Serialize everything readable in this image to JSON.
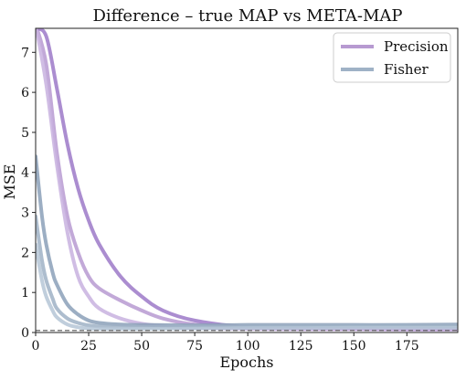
{
  "chart_data": {
    "type": "line",
    "title": "Difference – true MAP vs META-MAP",
    "xlabel": "Epochs",
    "ylabel": "MSE",
    "xlim": [
      0,
      199
    ],
    "ylim": [
      0,
      7.6
    ],
    "xticks": [
      0,
      25,
      50,
      75,
      100,
      125,
      150,
      175
    ],
    "yticks": [
      0,
      1,
      2,
      3,
      4,
      5,
      6,
      7
    ],
    "xtick_labels": [
      "0",
      "25",
      "50",
      "75",
      "100",
      "125",
      "150",
      "175"
    ],
    "ytick_labels": [
      "0",
      "1",
      "2",
      "3",
      "4",
      "5",
      "6",
      "7"
    ],
    "grid": false,
    "legend_position": "top-right",
    "legend": [
      {
        "label": "Precision",
        "color": "#b79ad1"
      },
      {
        "label": "Fisher",
        "color": "#9fb2c6"
      }
    ],
    "reference_line": {
      "y": 0.05,
      "style": "dashed",
      "color": "#555555"
    },
    "series": [
      {
        "group": "Precision",
        "color": "#b79ad1",
        "x": [
          0,
          5,
          10,
          15,
          20,
          25,
          30,
          40,
          50,
          60,
          75,
          100,
          125,
          150,
          175,
          199
        ],
        "y": [
          7.7,
          6.7,
          4.5,
          2.9,
          2.0,
          1.4,
          1.1,
          0.8,
          0.55,
          0.35,
          0.2,
          0.12,
          0.1,
          0.09,
          0.09,
          0.09
        ]
      },
      {
        "group": "Precision",
        "color": "#9c79c8",
        "x": [
          0,
          5,
          10,
          15,
          20,
          25,
          30,
          40,
          50,
          60,
          75,
          100,
          125,
          150,
          175,
          199
        ],
        "y": [
          7.6,
          7.4,
          6.1,
          4.7,
          3.6,
          2.8,
          2.2,
          1.4,
          0.9,
          0.55,
          0.3,
          0.13,
          0.1,
          0.09,
          0.08,
          0.08
        ]
      },
      {
        "group": "Precision",
        "color": "#c8b2df",
        "x": [
          0,
          5,
          10,
          15,
          20,
          25,
          30,
          40,
          50,
          60,
          75,
          100,
          125,
          150,
          175,
          199
        ],
        "y": [
          7.7,
          6.2,
          4.2,
          2.5,
          1.4,
          0.9,
          0.6,
          0.35,
          0.22,
          0.16,
          0.11,
          0.09,
          0.08,
          0.08,
          0.07,
          0.07
        ]
      },
      {
        "group": "Fisher",
        "color": "#8ba0b8",
        "x": [
          0,
          3,
          5,
          8,
          10,
          15,
          20,
          25,
          30,
          40,
          50,
          75,
          100,
          125,
          150,
          175,
          199
        ],
        "y": [
          4.4,
          2.9,
          2.2,
          1.5,
          1.2,
          0.7,
          0.45,
          0.3,
          0.24,
          0.2,
          0.19,
          0.18,
          0.19,
          0.19,
          0.19,
          0.19,
          0.2
        ]
      },
      {
        "group": "Fisher",
        "color": "#9fb2c6",
        "x": [
          0,
          3,
          5,
          8,
          10,
          15,
          20,
          25,
          30,
          40,
          50,
          75,
          100,
          125,
          150,
          175,
          199
        ],
        "y": [
          2.9,
          1.8,
          1.3,
          0.85,
          0.6,
          0.35,
          0.24,
          0.18,
          0.15,
          0.14,
          0.14,
          0.15,
          0.15,
          0.16,
          0.16,
          0.16,
          0.16
        ]
      },
      {
        "group": "Fisher",
        "color": "#b5c6d6",
        "x": [
          0,
          3,
          5,
          8,
          10,
          15,
          20,
          25,
          30,
          40,
          50,
          75,
          100,
          125,
          150,
          175,
          199
        ],
        "y": [
          2.2,
          1.3,
          0.9,
          0.55,
          0.38,
          0.2,
          0.13,
          0.1,
          0.09,
          0.09,
          0.09,
          0.1,
          0.11,
          0.11,
          0.12,
          0.12,
          0.12
        ]
      }
    ]
  }
}
